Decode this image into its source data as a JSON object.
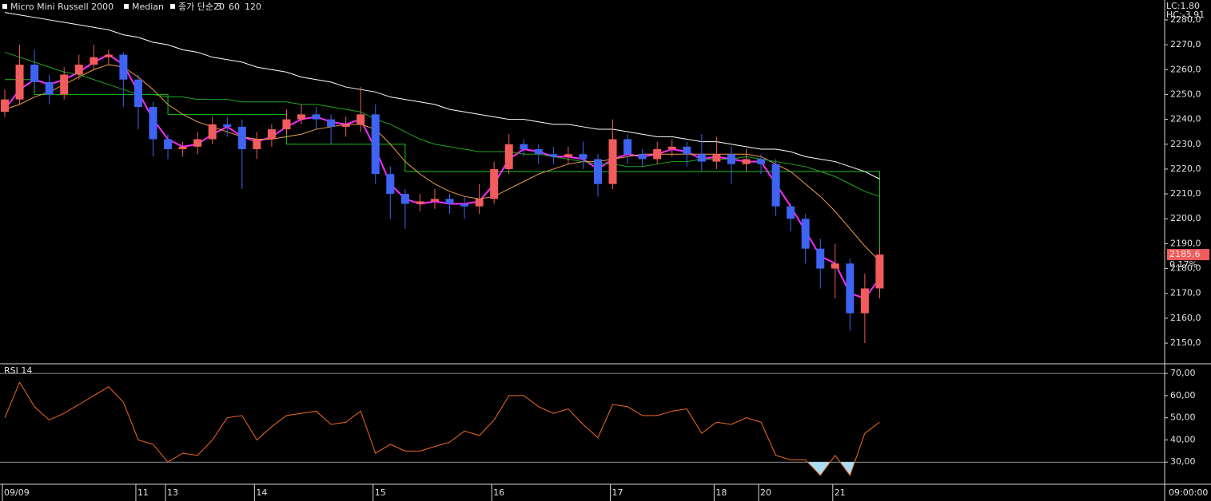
{
  "chart_data": [
    {
      "type": "candlestick",
      "title": "Micro Mini Russell 2000",
      "categories": [
        "09/09",
        null,
        null,
        null,
        null,
        null,
        null,
        null,
        null,
        "11",
        null,
        "13",
        null,
        null,
        null,
        null,
        null,
        "14",
        null,
        null,
        null,
        null,
        null,
        null,
        null,
        "15",
        null,
        null,
        null,
        null,
        null,
        null,
        null,
        "16",
        null,
        null,
        null,
        null,
        null,
        null,
        null,
        "17",
        null,
        null,
        null,
        null,
        null,
        null,
        "18",
        null,
        null,
        "20",
        null,
        null,
        null,
        null,
        "21",
        null,
        null,
        null
      ],
      "open": [
        2243,
        2248,
        2262,
        2255,
        2250,
        2258,
        2262,
        2265,
        2266,
        2256,
        2245,
        2232,
        2228,
        2229,
        2232,
        2238,
        2237,
        2228,
        2232,
        2236,
        2240,
        2242,
        2240,
        2237,
        2238,
        2242,
        2218,
        2210,
        2206,
        2207,
        2208,
        2206,
        2205,
        2208,
        2220,
        2230,
        2228,
        2226,
        2225,
        2226,
        2224,
        2214,
        2232,
        2226,
        2224,
        2228,
        2229,
        2226,
        2223,
        2226,
        2222,
        2224,
        2222,
        2205,
        2200,
        2188,
        2180,
        2182,
        2162,
        2172
      ],
      "high": [
        2252,
        2270,
        2268,
        2258,
        2261,
        2266,
        2270,
        2268,
        2267,
        2258,
        2247,
        2234,
        2231,
        2235,
        2241,
        2241,
        2240,
        2235,
        2238,
        2244,
        2246,
        2245,
        2242,
        2241,
        2253,
        2246,
        2221,
        2212,
        2210,
        2212,
        2210,
        2209,
        2214,
        2223,
        2234,
        2232,
        2230,
        2229,
        2229,
        2231,
        2226,
        2240,
        2234,
        2228,
        2231,
        2232,
        2231,
        2234,
        2233,
        2229,
        2228,
        2226,
        2224,
        2206,
        2202,
        2192,
        2190,
        2184,
        2178,
        2188
      ],
      "low": [
        2241,
        2246,
        2252,
        2246,
        2248,
        2256,
        2260,
        2262,
        2245,
        2236,
        2225,
        2224,
        2225,
        2226,
        2230,
        2233,
        2212,
        2224,
        2229,
        2234,
        2238,
        2236,
        2230,
        2233,
        2235,
        2214,
        2200,
        2196,
        2203,
        2204,
        2202,
        2200,
        2202,
        2206,
        2218,
        2225,
        2222,
        2222,
        2222,
        2220,
        2209,
        2212,
        2222,
        2221,
        2222,
        2225,
        2221,
        2219,
        2220,
        2214,
        2219,
        2218,
        2201,
        2195,
        2182,
        2172,
        2168,
        2155,
        2150,
        2168
      ],
      "close": [
        2248,
        2262,
        2255,
        2250,
        2258,
        2262,
        2265,
        2266,
        2256,
        2245,
        2232,
        2228,
        2229,
        2232,
        2238,
        2237,
        2228,
        2232,
        2236,
        2240,
        2242,
        2240,
        2237,
        2238,
        2242,
        2218,
        2210,
        2206,
        2207,
        2208,
        2206,
        2205,
        2208,
        2220,
        2230,
        2228,
        2226,
        2225,
        2226,
        2224,
        2214,
        2232,
        2226,
        2224,
        2228,
        2229,
        2226,
        2223,
        2226,
        2222,
        2224,
        2222,
        2205,
        2200,
        2188,
        2180,
        2182,
        2162,
        2172,
        2185.6
      ],
      "up_color": "#f25c5c",
      "down_color": "#3f63f2",
      "series": [
        {
          "name": "Median",
          "color": "#19c419",
          "step": true,
          "values": [
            2256,
            2256,
            2250,
            2250,
            2250,
            2250,
            2250,
            2250,
            2250,
            2250,
            2250,
            2242,
            2242,
            2242,
            2242,
            2242,
            2242,
            2242,
            2242,
            2230,
            2230,
            2230,
            2230,
            2230,
            2230,
            2230,
            2230,
            2219,
            2219,
            2219,
            2219,
            2219,
            2219,
            2219,
            2219,
            2219,
            2219,
            2219,
            2219,
            2219,
            2219,
            2219,
            2219,
            2219,
            2219,
            2219,
            2219,
            2219,
            2219,
            2219,
            2219,
            2219,
            2219,
            2219,
            2219,
            2219,
            2219,
            2219,
            2219,
            2183
          ]
        },
        {
          "name": "종가 단순 5",
          "color": "#ff2bff",
          "width": 2,
          "values": [
            2244,
            2252,
            2256,
            2254,
            2256,
            2259,
            2263,
            2266,
            2262,
            2251,
            2240,
            2232,
            2229,
            2230,
            2234,
            2237,
            2233,
            2231,
            2233,
            2237,
            2240,
            2241,
            2239,
            2238,
            2240,
            2228,
            2214,
            2208,
            2206,
            2207,
            2206,
            2206,
            2207,
            2214,
            2224,
            2228,
            2227,
            2225,
            2225,
            2224,
            2220,
            2224,
            2226,
            2225,
            2226,
            2228,
            2227,
            2224,
            2225,
            2224,
            2223,
            2223,
            2214,
            2205,
            2195,
            2185,
            2182,
            2170,
            2168,
            2176
          ]
        },
        {
          "name": "20",
          "color": "#f0a048",
          "width": 1,
          "values": [
            2244,
            2246,
            2249,
            2251,
            2254,
            2257,
            2260,
            2262,
            2261,
            2257,
            2252,
            2246,
            2242,
            2239,
            2237,
            2235,
            2233,
            2232,
            2232,
            2233,
            2234,
            2236,
            2237,
            2238,
            2238,
            2236,
            2230,
            2223,
            2218,
            2214,
            2211,
            2209,
            2208,
            2209,
            2212,
            2215,
            2218,
            2220,
            2222,
            2223,
            2223,
            2224,
            2225,
            2226,
            2226,
            2226,
            2226,
            2226,
            2226,
            2226,
            2226,
            2225,
            2222,
            2219,
            2214,
            2209,
            2203,
            2196,
            2189,
            2183
          ]
        },
        {
          "name": "60",
          "color": "#1fa81f",
          "width": 1,
          "values": [
            2267,
            2265,
            2263,
            2261,
            2259,
            2258,
            2256,
            2254,
            2252,
            2250,
            2250,
            2249,
            2249,
            2248,
            2248,
            2248,
            2247,
            2247,
            2247,
            2247,
            2246,
            2246,
            2245,
            2244,
            2243,
            2240,
            2238,
            2235,
            2232,
            2230,
            2229,
            2228,
            2227,
            2227,
            2227,
            2226,
            2226,
            2225,
            2224,
            2223,
            2222,
            2222,
            2221,
            2221,
            2222,
            2223,
            2223,
            2224,
            2224,
            2224,
            2225,
            2224,
            2223,
            2222,
            2221,
            2219,
            2217,
            2214,
            2211,
            2209
          ]
        },
        {
          "name": "120",
          "color": "#ffffff",
          "width": 1,
          "values": [
            2283,
            2282,
            2281,
            2280,
            2279,
            2278,
            2277,
            2276,
            2274,
            2273,
            2271,
            2270,
            2268,
            2267,
            2265,
            2264,
            2263,
            2261,
            2260,
            2259,
            2257,
            2256,
            2255,
            2253,
            2252,
            2251,
            2249,
            2248,
            2247,
            2246,
            2244,
            2243,
            2242,
            2241,
            2240,
            2240,
            2239,
            2238,
            2238,
            2237,
            2236,
            2236,
            2235,
            2234,
            2233,
            2233,
            2232,
            2231,
            2231,
            2230,
            2229,
            2228,
            2228,
            2227,
            2225,
            2224,
            2223,
            2221,
            2219,
            2216
          ]
        }
      ],
      "ylim": [
        2142,
        2288
      ],
      "yticks": [
        {
          "value": 2150,
          "label": "2150,0"
        },
        {
          "value": 2160,
          "label": "2160,0"
        },
        {
          "value": 2170,
          "label": "2170,0"
        },
        {
          "value": 2180,
          "label": "2180,0"
        },
        {
          "value": 2190,
          "label": "2190,0"
        },
        {
          "value": 2200,
          "label": "2200,0"
        },
        {
          "value": 2210,
          "label": "2210,0"
        },
        {
          "value": 2220,
          "label": "2220,0"
        },
        {
          "value": 2230,
          "label": "2230,0"
        },
        {
          "value": 2240,
          "label": "2240,0"
        },
        {
          "value": 2250,
          "label": "2250,0"
        },
        {
          "value": 2260,
          "label": "2260,0"
        },
        {
          "value": 2270,
          "label": "2270,0"
        },
        {
          "value": 2280,
          "label": "2280,0"
        }
      ],
      "last_price_label": "2185,6",
      "change_label": "0.17%",
      "annotations": [
        "LC:1.80",
        "HC:-3.91"
      ],
      "time_label": "09:00:00"
    },
    {
      "type": "line",
      "title": "RSI 14",
      "series": [
        {
          "name": "RSI 14",
          "color": "#f26a22",
          "values": [
            50,
            66,
            55,
            49,
            52,
            56,
            60,
            64,
            57,
            40,
            38,
            30,
            34,
            33,
            40,
            50,
            51,
            40,
            46,
            51,
            52,
            53,
            47,
            48,
            53,
            34,
            38,
            35,
            35,
            37,
            39,
            44,
            42,
            49,
            60,
            60,
            55,
            52,
            54,
            47,
            41,
            56,
            55,
            51,
            51,
            53,
            54,
            43,
            48,
            47,
            50,
            48,
            33,
            31,
            31,
            24,
            33,
            24,
            43,
            48
          ]
        }
      ],
      "levels": [
        70,
        30
      ],
      "fill_color": "#a8dcf2",
      "ylim": [
        20,
        74
      ],
      "yticks": [
        {
          "value": 30,
          "label": "30,00"
        },
        {
          "value": 40,
          "label": "40,00"
        },
        {
          "value": 50,
          "label": "50,00"
        },
        {
          "value": 60,
          "label": "60,00"
        },
        {
          "value": 70,
          "label": "70,00"
        }
      ]
    }
  ]
}
